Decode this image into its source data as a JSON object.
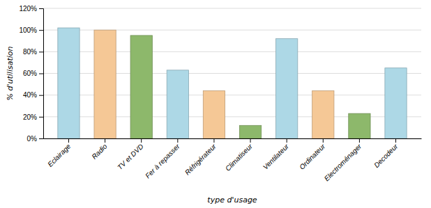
{
  "chart_data": {
    "type": "bar",
    "categories": [
      "Eclairage",
      "Radio",
      "TV et DVD",
      "Fer à repasser",
      "Réfrigérateur",
      "Climatiseur",
      "Ventilateur",
      "Ordinateur",
      "Electroménager",
      "Decodeur"
    ],
    "values": [
      102,
      100,
      95,
      63,
      44,
      12,
      92,
      44,
      23,
      65
    ],
    "colors": [
      "#ADD8E6",
      "#F5C896",
      "#8DB86B",
      "#ADD8E6",
      "#F5C896",
      "#8DB86B",
      "#ADD8E6",
      "#F5C896",
      "#8DB86B",
      "#ADD8E6"
    ],
    "xlabel": "type d'usage",
    "ylabel": "% d'utilisation",
    "ylim": [
      0,
      120
    ],
    "yticks": [
      {
        "value": 0,
        "label": "0%"
      },
      {
        "value": 20,
        "label": "20%"
      },
      {
        "value": 40,
        "label": "40%"
      },
      {
        "value": 60,
        "label": "60%"
      },
      {
        "value": 80,
        "label": "80%"
      },
      {
        "value": 100,
        "label": "100%"
      },
      {
        "value": 120,
        "label": "120%"
      }
    ],
    "grid": true
  }
}
